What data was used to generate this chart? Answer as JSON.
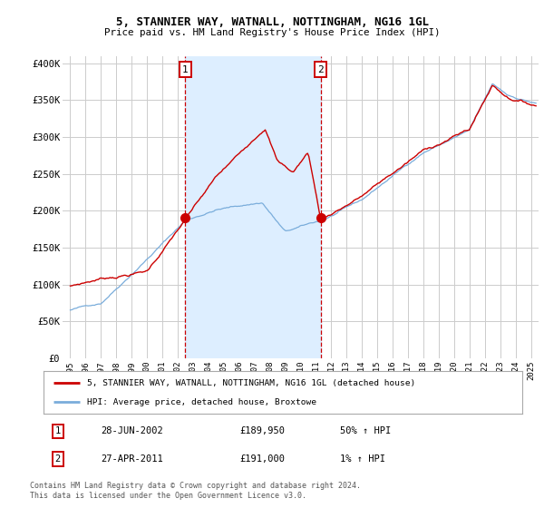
{
  "title1": "5, STANNIER WAY, WATNALL, NOTTINGHAM, NG16 1GL",
  "title2": "Price paid vs. HM Land Registry's House Price Index (HPI)",
  "ylabel_ticks": [
    "£0",
    "£50K",
    "£100K",
    "£150K",
    "£200K",
    "£250K",
    "£300K",
    "£350K",
    "£400K"
  ],
  "ytick_vals": [
    0,
    50000,
    100000,
    150000,
    200000,
    250000,
    300000,
    350000,
    400000
  ],
  "ylim": [
    0,
    410000
  ],
  "xlim_start": 1994.5,
  "xlim_end": 2025.5,
  "transaction1": {
    "date_num": 2002.49,
    "price": 189950,
    "label": "1"
  },
  "transaction2": {
    "date_num": 2011.32,
    "price": 191000,
    "label": "2"
  },
  "legend_line1": "5, STANNIER WAY, WATNALL, NOTTINGHAM, NG16 1GL (detached house)",
  "legend_line2": "HPI: Average price, detached house, Broxtowe",
  "footnote_line1": "Contains HM Land Registry data © Crown copyright and database right 2024.",
  "footnote_line2": "This data is licensed under the Open Government Licence v3.0.",
  "annot1_date": "28-JUN-2002",
  "annot1_price": "£189,950",
  "annot1_hpi": "50% ↑ HPI",
  "annot2_date": "27-APR-2011",
  "annot2_price": "£191,000",
  "annot2_hpi": "1% ↑ HPI",
  "line_color_red": "#cc0000",
  "line_color_blue": "#7aaddb",
  "shaded_color": "#ddeeff",
  "marker_color_red": "#cc0000",
  "grid_color": "#cccccc",
  "bg_color": "#ffffff",
  "vline_color": "#cc0000",
  "box_color": "#cc0000",
  "xtick_years": [
    1995,
    1996,
    1997,
    1998,
    1999,
    2000,
    2001,
    2002,
    2003,
    2004,
    2005,
    2006,
    2007,
    2008,
    2009,
    2010,
    2011,
    2012,
    2013,
    2014,
    2015,
    2016,
    2017,
    2018,
    2019,
    2020,
    2021,
    2022,
    2023,
    2024,
    2025
  ]
}
